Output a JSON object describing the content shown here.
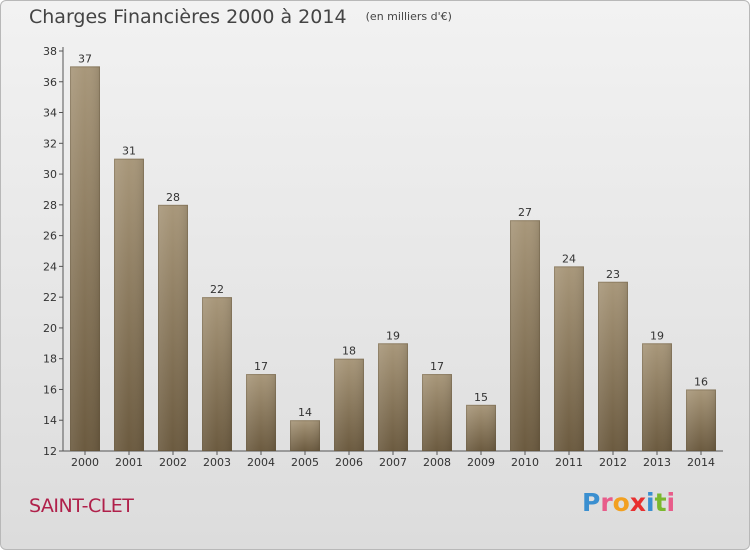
{
  "title": "Charges Financières 2000 à 2014",
  "unit": "(en milliers d'€)",
  "commune": "SAINT-CLET",
  "logo": {
    "letters": [
      "P",
      "r",
      "o",
      "x",
      "i",
      "t",
      "i"
    ],
    "colors": [
      "#3a8fd0",
      "#e85c8a",
      "#f2a020",
      "#e83030",
      "#3a8fd0",
      "#7ab82e",
      "#e85c8a"
    ]
  },
  "colors": {
    "bar_top": "#a8977a",
    "bar_bottom": "#6b5a3f",
    "text": "#333333",
    "commune": "#b0204a"
  },
  "chart_data": {
    "type": "bar",
    "title": "Charges Financières 2000 à 2014",
    "ylabel": "(en milliers d'€)",
    "categories": [
      "2000",
      "2001",
      "2002",
      "2003",
      "2004",
      "2005",
      "2006",
      "2007",
      "2008",
      "2009",
      "2010",
      "2011",
      "2012",
      "2013",
      "2014"
    ],
    "values": [
      37,
      31,
      28,
      22,
      17,
      14,
      18,
      19,
      17,
      15,
      27,
      24,
      23,
      19,
      16
    ],
    "ylim": [
      12,
      38
    ],
    "yticks": [
      12,
      14,
      16,
      18,
      20,
      22,
      24,
      26,
      28,
      30,
      32,
      34,
      36,
      38
    ],
    "grid": false,
    "data_labels": true
  }
}
